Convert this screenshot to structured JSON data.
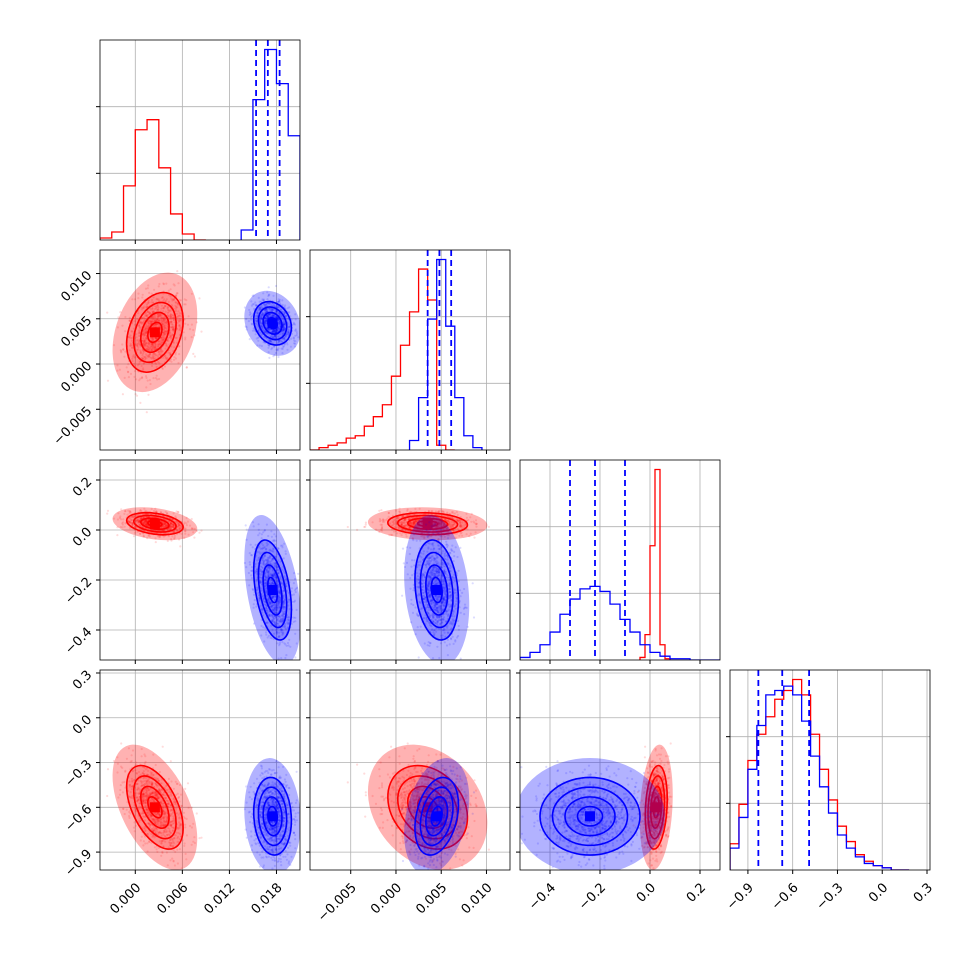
{
  "chart_data": {
    "type": "corner",
    "title": "",
    "parameters": [
      {
        "index": 0,
        "range": [
          -0.0045,
          0.021
        ],
        "ticks": [
          0.0,
          0.006,
          0.012,
          0.018
        ],
        "tick_labels": [
          "0.000",
          "0.006",
          "0.012",
          "0.018"
        ]
      },
      {
        "index": 1,
        "range": [
          -0.0095,
          0.0126
        ],
        "ticks": [
          -0.005,
          0.0,
          0.005,
          0.01
        ],
        "tick_labels": [
          "−0.005",
          "0.000",
          "0.005",
          "0.010"
        ]
      },
      {
        "index": 2,
        "range": [
          -0.52,
          0.28
        ],
        "ticks": [
          -0.4,
          -0.2,
          0.0,
          0.2
        ],
        "tick_labels": [
          "−0.4",
          "−0.2",
          "0.0",
          "0.2"
        ]
      },
      {
        "index": 3,
        "range": [
          -1.02,
          0.32
        ],
        "ticks": [
          -0.9,
          -0.6,
          -0.3,
          0.0,
          0.3
        ],
        "tick_labels": [
          "−0.9",
          "−0.6",
          "−0.3",
          "0.0",
          "0.3"
        ]
      }
    ],
    "grid": true,
    "series": [
      {
        "color": "#ff0000",
        "mean": [
          0.0025,
          0.0035,
          0.025,
          -0.6
        ],
        "sd": [
          0.0018,
          0.0022,
          0.022,
          0.14
        ],
        "corr": [
          [
            1.0,
            0.3,
            -0.3,
            -0.5
          ],
          [
            0.3,
            1.0,
            -0.1,
            -0.25
          ],
          [
            -0.3,
            -0.1,
            1.0,
            0.2
          ],
          [
            -0.5,
            -0.25,
            0.2,
            1.0
          ]
        ],
        "histograms": [
          {
            "edges": [
              -0.0045,
              -0.003,
              -0.0015,
              0.0,
              0.0015,
              0.003,
              0.0045,
              0.006,
              0.0075,
              0.009
            ],
            "counts": [
              1,
              4,
              27,
              55,
              60,
              36,
              13,
              3,
              0
            ]
          },
          {
            "edges": [
              -0.0095,
              -0.0085,
              -0.0075,
              -0.0065,
              -0.0055,
              -0.0045,
              -0.0035,
              -0.0025,
              -0.0015,
              -0.0005,
              0.0005,
              0.0015,
              0.0025,
              0.0035,
              0.0045,
              0.0055,
              0.0065
            ],
            "counts": [
              0,
              1,
              2,
              3,
              5,
              6,
              10,
              14,
              19,
              31,
              44,
              58,
              76,
              63,
              2,
              0
            ]
          },
          {
            "edges": [
              -0.04,
              -0.02,
              0.0,
              0.02,
              0.04,
              0.06,
              0.08
            ],
            "counts": [
              2,
              20,
              90,
              150,
              12,
              1
            ]
          },
          {
            "edges": [
              -1.02,
              -0.96,
              -0.9,
              -0.84,
              -0.78,
              -0.72,
              -0.66,
              -0.6,
              -0.54,
              -0.48,
              -0.42,
              -0.36,
              -0.3,
              -0.24,
              -0.18,
              -0.12,
              -0.06,
              0.0,
              0.06,
              0.12,
              0.18
            ],
            "counts": [
              12,
              30,
              50,
              62,
              70,
              78,
              82,
              87,
              80,
              62,
              46,
              32,
              20,
              13,
              7,
              4,
              2,
              1,
              0,
              0
            ]
          }
        ]
      },
      {
        "color": "#0000ff",
        "mean": [
          0.0175,
          0.0045,
          -0.24,
          -0.66
        ],
        "sd": [
          0.0012,
          0.0012,
          0.1,
          0.13
        ],
        "corr": [
          [
            1.0,
            -0.2,
            -0.4,
            -0.1
          ],
          [
            -0.2,
            1.0,
            -0.2,
            0.3
          ],
          [
            -0.4,
            -0.2,
            1.0,
            0.0
          ],
          [
            -0.1,
            0.3,
            0.0,
            1.0
          ]
        ],
        "quantiles": [
          [
            0.0154,
            0.0169,
            0.0184
          ],
          [
            0.0035,
            0.0048,
            0.0061
          ],
          [
            -0.32,
            -0.22,
            -0.1
          ],
          [
            -0.83,
            -0.67,
            -0.49
          ]
        ],
        "histograms": [
          {
            "edges": [
              0.0135,
              0.015,
              0.0165,
              0.018,
              0.0195,
              0.021
            ],
            "counts": [
              5,
              70,
              95,
              78,
              52
            ]
          },
          {
            "edges": [
              0.0015,
              0.0025,
              0.0035,
              0.0045,
              0.0055,
              0.0065,
              0.0075,
              0.0085,
              0.0095
            ],
            "counts": [
              4,
              22,
              55,
              80,
              52,
              22,
              6,
              1
            ]
          },
          {
            "edges": [
              -0.52,
              -0.48,
              -0.44,
              -0.4,
              -0.36,
              -0.32,
              -0.28,
              -0.24,
              -0.2,
              -0.16,
              -0.12,
              -0.08,
              -0.04,
              0.0,
              0.04,
              0.08,
              0.12,
              0.16,
              0.2,
              0.24,
              0.28
            ],
            "counts": [
              2,
              6,
              12,
              22,
              36,
              48,
              56,
              58,
              54,
              44,
              32,
              22,
              12,
              6,
              3,
              1,
              1,
              0,
              0,
              0
            ]
          },
          {
            "edges": [
              -1.02,
              -0.96,
              -0.9,
              -0.84,
              -0.78,
              -0.72,
              -0.66,
              -0.6,
              -0.54,
              -0.48,
              -0.42,
              -0.36,
              -0.3,
              -0.24,
              -0.18,
              -0.12,
              -0.06,
              0.0,
              0.06,
              0.12,
              0.18
            ],
            "counts": [
              10,
              24,
              46,
              66,
              80,
              82,
              84,
              80,
              68,
              52,
              38,
              26,
              16,
              10,
              6,
              3,
              2,
              1,
              0,
              0
            ]
          }
        ]
      }
    ]
  }
}
